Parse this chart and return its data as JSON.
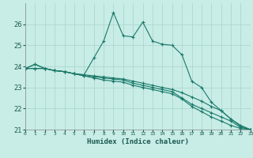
{
  "xlabel": "Humidex (Indice chaleur)",
  "background_color": "#c8ece6",
  "grid_color": "#a8d5cc",
  "line_color": "#1a7a6a",
  "xlim": [
    0,
    23
  ],
  "ylim": [
    21,
    27
  ],
  "yticks": [
    21,
    22,
    23,
    24,
    25,
    26
  ],
  "xticks": [
    0,
    1,
    2,
    3,
    4,
    5,
    6,
    7,
    8,
    9,
    10,
    11,
    12,
    13,
    14,
    15,
    16,
    17,
    18,
    19,
    20,
    21,
    22,
    23
  ],
  "series": [
    [
      23.9,
      24.1,
      23.9,
      23.8,
      23.75,
      23.65,
      23.6,
      23.55,
      23.5,
      23.45,
      23.4,
      23.3,
      23.2,
      23.1,
      23.0,
      22.9,
      22.75,
      22.55,
      22.35,
      22.1,
      21.9,
      21.5,
      21.15,
      21.0
    ],
    [
      23.9,
      23.9,
      23.9,
      23.8,
      23.75,
      23.65,
      23.55,
      23.5,
      23.45,
      23.4,
      23.35,
      23.2,
      23.1,
      23.0,
      22.9,
      22.8,
      22.5,
      22.2,
      22.0,
      21.8,
      21.6,
      21.4,
      21.1,
      21.0
    ],
    [
      23.9,
      23.9,
      23.9,
      23.8,
      23.75,
      23.65,
      23.55,
      23.45,
      23.35,
      23.3,
      23.25,
      23.1,
      23.0,
      22.9,
      22.8,
      22.7,
      22.45,
      22.1,
      21.85,
      21.6,
      21.4,
      21.2,
      21.05,
      21.0
    ],
    [
      23.9,
      24.1,
      23.9,
      23.8,
      23.75,
      23.65,
      23.6,
      24.4,
      25.2,
      26.55,
      25.45,
      25.4,
      26.1,
      25.2,
      25.05,
      25.0,
      24.55,
      23.3,
      23.0,
      22.3,
      21.9,
      21.5,
      21.2,
      21.0
    ]
  ]
}
